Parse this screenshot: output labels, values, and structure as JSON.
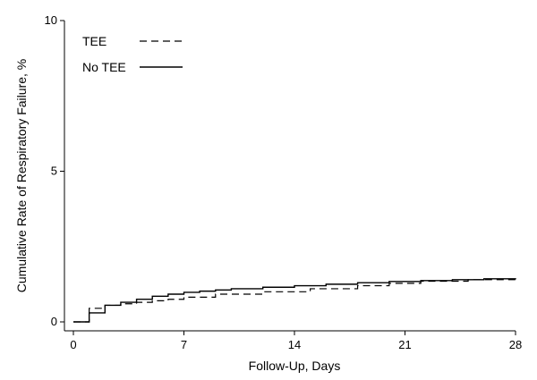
{
  "chart_data": {
    "type": "line",
    "step": true,
    "title": "",
    "xlabel": "Follow-Up, Days",
    "ylabel": "Cumulative Rate of Respiratory Failure, %",
    "xlim": [
      0,
      28
    ],
    "ylim": [
      0,
      10
    ],
    "x_ticks": [
      0,
      7,
      14,
      21,
      28
    ],
    "y_ticks": [
      0,
      5,
      10
    ],
    "grid": false,
    "legend_placement": "top-left",
    "series": [
      {
        "name": "TEE",
        "style": "dashed",
        "color": "#000000",
        "x": [
          0,
          1,
          1,
          2,
          2,
          3,
          4,
          5,
          6,
          7,
          9,
          12,
          15,
          18,
          20,
          22,
          25,
          28
        ],
        "y": [
          0,
          0,
          0.45,
          0.45,
          0.55,
          0.6,
          0.65,
          0.7,
          0.75,
          0.82,
          0.92,
          1.0,
          1.1,
          1.2,
          1.28,
          1.35,
          1.4,
          1.45
        ]
      },
      {
        "name": "No TEE",
        "style": "solid",
        "color": "#000000",
        "x": [
          0,
          1,
          1,
          2,
          2,
          3,
          4,
          5,
          6,
          7,
          8,
          9,
          10,
          12,
          14,
          16,
          18,
          20,
          22,
          24,
          26,
          28
        ],
        "y": [
          0,
          0,
          0.3,
          0.3,
          0.55,
          0.65,
          0.75,
          0.85,
          0.92,
          0.98,
          1.02,
          1.06,
          1.1,
          1.15,
          1.2,
          1.25,
          1.3,
          1.34,
          1.37,
          1.4,
          1.43,
          1.45
        ]
      }
    ]
  }
}
